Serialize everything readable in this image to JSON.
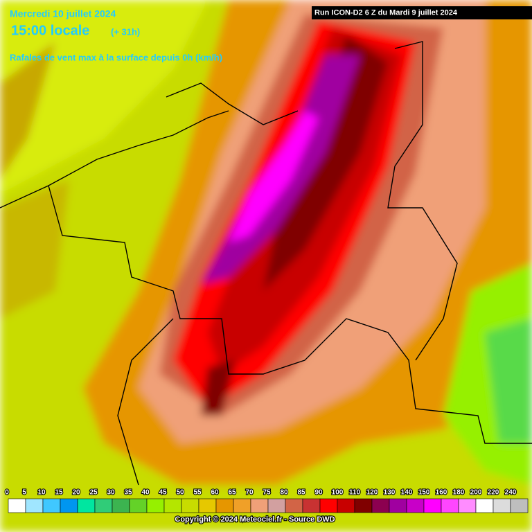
{
  "header": {
    "date": "Mercredi 10 juillet 2024",
    "time": "15:00 locale",
    "offset": "(+ 31h)",
    "subtitle": "Rafales de vent max à la surface depuis 0h (km/h)",
    "run": "Run ICON-D2 6 Z du Mardi 9 juillet 2024"
  },
  "legend": {
    "levels": [
      0,
      5,
      10,
      15,
      20,
      25,
      30,
      35,
      40,
      45,
      50,
      55,
      60,
      65,
      70,
      75,
      80,
      85,
      90,
      100,
      110,
      120,
      130,
      140,
      150,
      160,
      180,
      200,
      220,
      240
    ],
    "colors": [
      "#ffffff",
      "#a0e6ff",
      "#40c8ff",
      "#0096f0",
      "#00e6a0",
      "#30cc78",
      "#3cb450",
      "#64d228",
      "#96f000",
      "#b4e600",
      "#c8dc00",
      "#e6c800",
      "#e69600",
      "#f0a028",
      "#f0a078",
      "#d2a0a0",
      "#d26446",
      "#c83232",
      "#ff0000",
      "#c80000",
      "#800000",
      "#8c0050",
      "#a000a0",
      "#c800c8",
      "#ff00ff",
      "#ff46ff",
      "#ff8cff",
      "#ffffff",
      "#dcdcdc",
      "#bebebe"
    ]
  },
  "footer": {
    "copyright": "Copyright © 2024 Meteociel.fr - Source DWD"
  }
}
